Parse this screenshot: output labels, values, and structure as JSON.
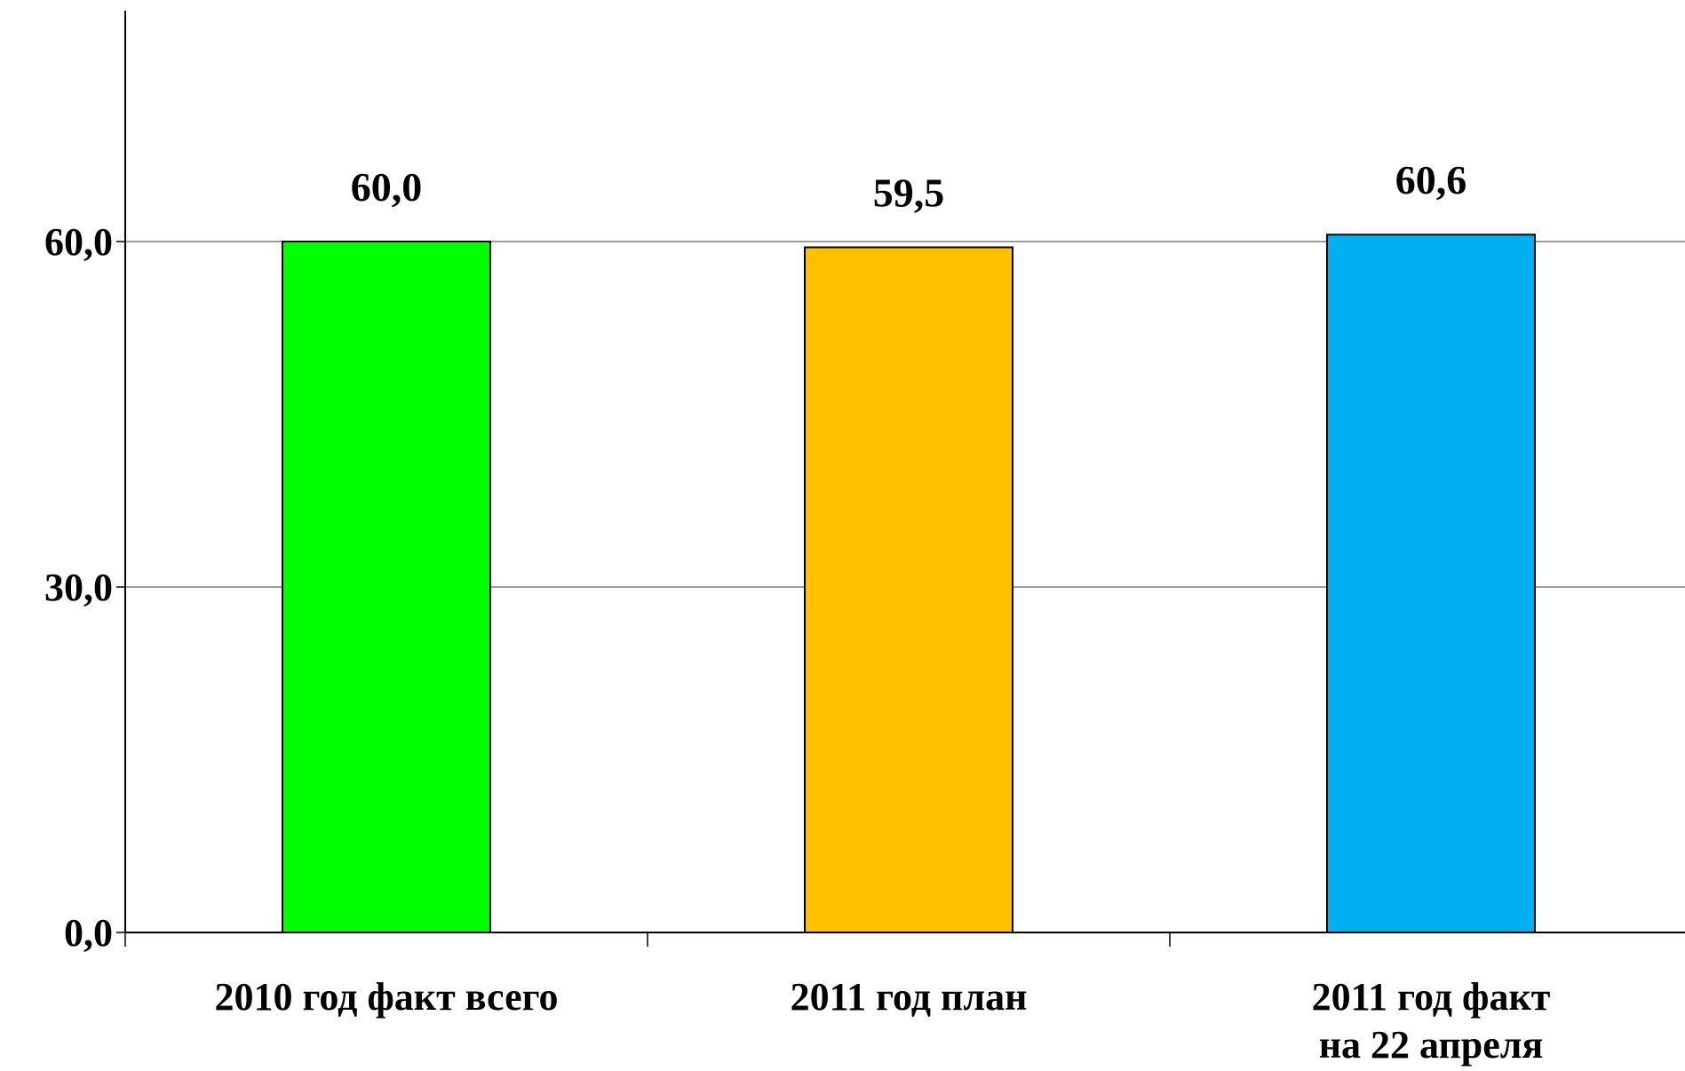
{
  "chart_data": {
    "type": "bar",
    "categories": [
      [
        "2010 год факт всего"
      ],
      [
        "2011 год план"
      ],
      [
        "2011 год факт",
        "на 22 апреля"
      ]
    ],
    "values": [
      60.0,
      59.5,
      60.6
    ],
    "value_labels": [
      "60,0",
      "59,5",
      "60,6"
    ],
    "colors": [
      "#00FF00",
      "#FFC000",
      "#00B0F0"
    ],
    "ylim": [
      0,
      80
    ],
    "yticks": [
      {
        "value": 0,
        "label": "0,0"
      },
      {
        "value": 30,
        "label": "30,0"
      },
      {
        "value": 60,
        "label": "60,0"
      }
    ],
    "grid": true,
    "title": "",
    "xlabel": "",
    "ylabel": ""
  }
}
